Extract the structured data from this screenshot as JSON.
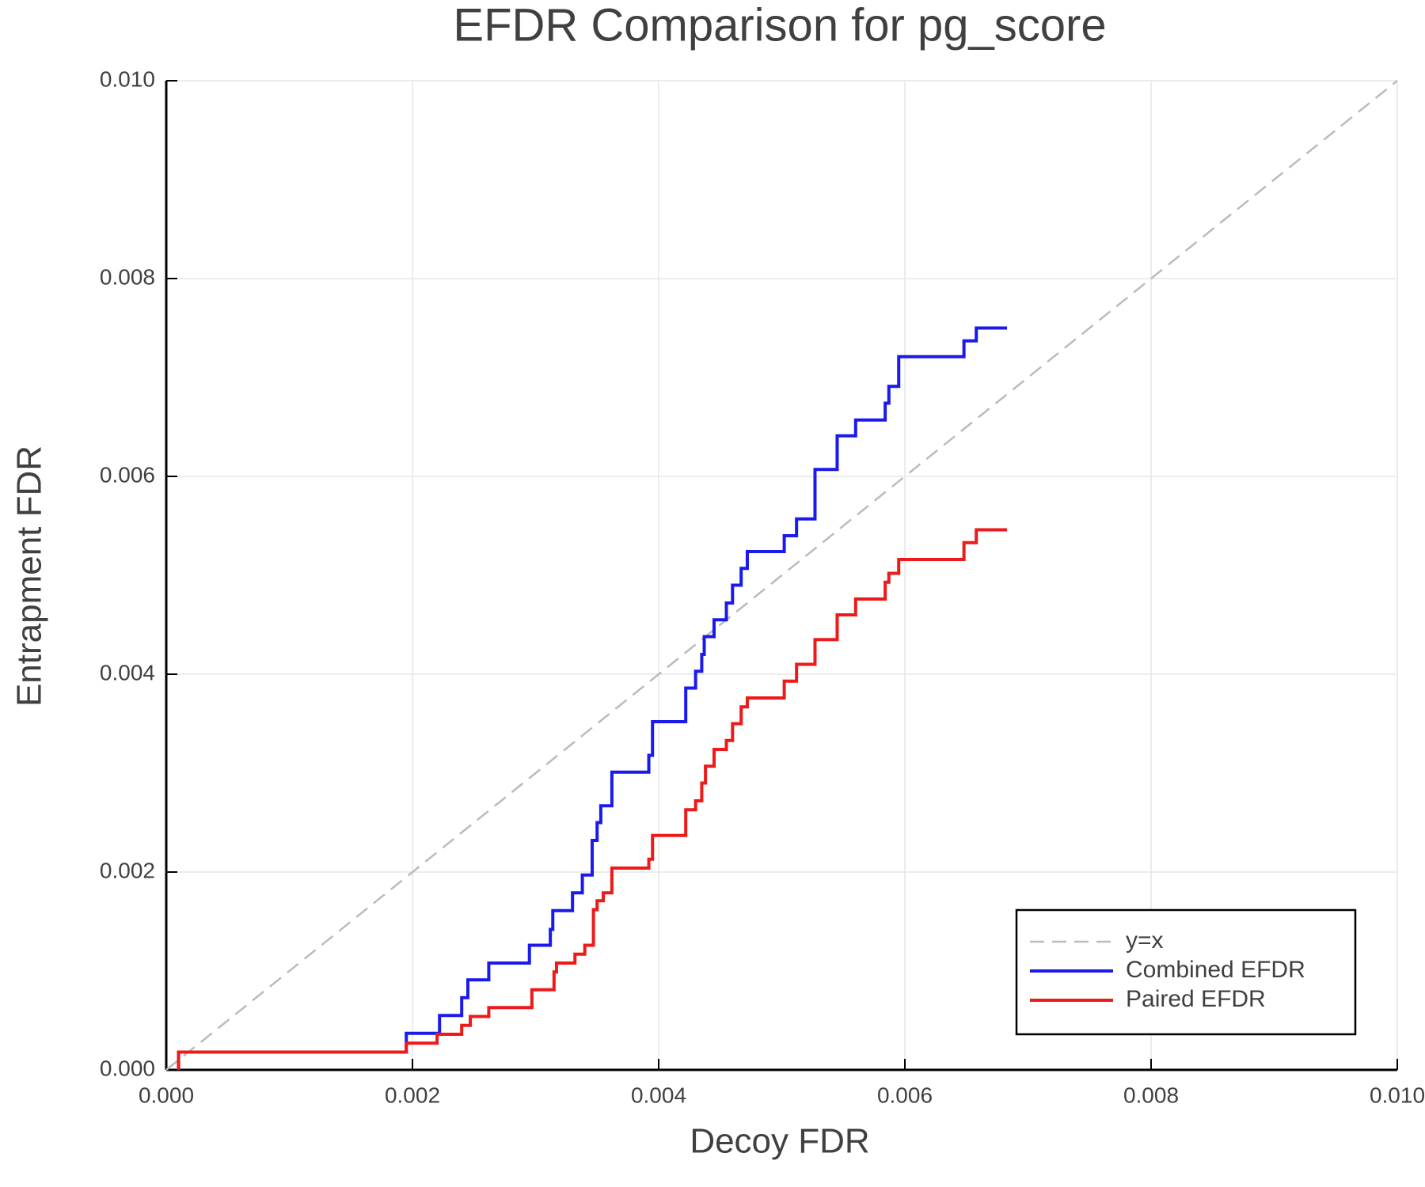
{
  "chart_data": {
    "type": "line",
    "title": "EFDR Comparison for pg_score",
    "x_label": "Decoy FDR",
    "y_label": "Entrapment FDR",
    "xlim": [
      0,
      0.01
    ],
    "ylim": [
      0,
      0.01
    ],
    "xticks": [
      {
        "value": 0,
        "label": "0.000"
      },
      {
        "value": 0.002,
        "label": "0.002"
      },
      {
        "value": 0.004,
        "label": "0.004"
      },
      {
        "value": 0.006,
        "label": "0.006"
      },
      {
        "value": 0.008,
        "label": "0.008"
      },
      {
        "value": 0.01,
        "label": "0.010"
      }
    ],
    "yticks": [
      {
        "value": 0,
        "label": "0.000"
      },
      {
        "value": 0.002,
        "label": "0.002"
      },
      {
        "value": 0.004,
        "label": "0.004"
      },
      {
        "value": 0.006,
        "label": "0.006"
      },
      {
        "value": 0.008,
        "label": "0.008"
      },
      {
        "value": 0.01,
        "label": "0.010"
      }
    ],
    "grid": true,
    "legend_position": "lower right",
    "series": [
      {
        "name": "y=x",
        "color": "#bbbbbb",
        "dashed": true,
        "x": [
          0,
          0.01
        ],
        "values": [
          0,
          0.01
        ]
      },
      {
        "name": "Combined EFDR",
        "color": "#1a1aee",
        "dashed": false,
        "x": [
          0.0001,
          0.0001,
          0.00195,
          0.00195,
          0.00222,
          0.00222,
          0.0024,
          0.0024,
          0.00245,
          0.00245,
          0.00262,
          0.00262,
          0.00295,
          0.00295,
          0.00312,
          0.00312,
          0.00314,
          0.00314,
          0.0033,
          0.0033,
          0.00338,
          0.00338,
          0.00346,
          0.00346,
          0.0035,
          0.0035,
          0.00353,
          0.00353,
          0.00362,
          0.00362,
          0.00392,
          0.00392,
          0.00395,
          0.00395,
          0.00422,
          0.00422,
          0.0043,
          0.0043,
          0.00435,
          0.00435,
          0.00437,
          0.00437,
          0.00445,
          0.00445,
          0.00455,
          0.00455,
          0.0046,
          0.0046,
          0.00467,
          0.00467,
          0.00472,
          0.00472,
          0.00502,
          0.00502,
          0.00512,
          0.00512,
          0.00527,
          0.00527,
          0.00545,
          0.00545,
          0.0056,
          0.0056,
          0.00584,
          0.00584,
          0.00587,
          0.00587,
          0.00595,
          0.00595,
          0.00648,
          0.00648,
          0.00658,
          0.00658,
          0.00683
        ],
        "values": [
          0,
          0.00018,
          0.00018,
          0.00037,
          0.00037,
          0.00055,
          0.00055,
          0.00073,
          0.00073,
          0.00091,
          0.00091,
          0.00108,
          0.00108,
          0.00126,
          0.00126,
          0.00142,
          0.00142,
          0.00161,
          0.00161,
          0.00179,
          0.00179,
          0.00197,
          0.00197,
          0.00232,
          0.00232,
          0.0025,
          0.0025,
          0.00267,
          0.00267,
          0.00301,
          0.00301,
          0.00318,
          0.00318,
          0.00352,
          0.00352,
          0.00386,
          0.00386,
          0.00403,
          0.00403,
          0.0042,
          0.0042,
          0.00438,
          0.00438,
          0.00455,
          0.00455,
          0.00472,
          0.00472,
          0.0049,
          0.0049,
          0.00507,
          0.00507,
          0.00524,
          0.00524,
          0.0054,
          0.0054,
          0.00557,
          0.00557,
          0.00607,
          0.00607,
          0.00641,
          0.00641,
          0.00657,
          0.00657,
          0.00674,
          0.00674,
          0.00691,
          0.00691,
          0.00721,
          0.00721,
          0.00737,
          0.00737,
          0.0075,
          0.0075
        ]
      },
      {
        "name": "Paired EFDR",
        "color": "#ee1a1a",
        "dashed": false,
        "x": [
          0.0001,
          0.0001,
          0.00195,
          0.00195,
          0.0022,
          0.0022,
          0.0024,
          0.0024,
          0.00247,
          0.00247,
          0.00262,
          0.00262,
          0.00297,
          0.00297,
          0.00315,
          0.00315,
          0.00317,
          0.00317,
          0.00332,
          0.00332,
          0.0034,
          0.0034,
          0.00347,
          0.00347,
          0.0035,
          0.0035,
          0.00355,
          0.00355,
          0.00362,
          0.00362,
          0.00392,
          0.00392,
          0.00395,
          0.00395,
          0.00422,
          0.00422,
          0.0043,
          0.0043,
          0.00435,
          0.00435,
          0.00438,
          0.00438,
          0.00445,
          0.00445,
          0.00455,
          0.00455,
          0.0046,
          0.0046,
          0.00467,
          0.00467,
          0.00472,
          0.00472,
          0.00502,
          0.00502,
          0.00512,
          0.00512,
          0.00527,
          0.00527,
          0.00545,
          0.00545,
          0.0056,
          0.0056,
          0.00584,
          0.00584,
          0.00587,
          0.00587,
          0.00595,
          0.00595,
          0.00648,
          0.00648,
          0.00658,
          0.00658,
          0.00683
        ],
        "values": [
          0,
          0.00018,
          0.00018,
          0.00027,
          0.00027,
          0.00036,
          0.00036,
          0.00045,
          0.00045,
          0.00054,
          0.00054,
          0.00063,
          0.00063,
          0.00081,
          0.00081,
          0.00099,
          0.00099,
          0.00108,
          0.00108,
          0.00117,
          0.00117,
          0.00126,
          0.00126,
          0.00162,
          0.00162,
          0.00171,
          0.00171,
          0.00179,
          0.00179,
          0.00204,
          0.00204,
          0.00213,
          0.00213,
          0.00237,
          0.00237,
          0.00263,
          0.00263,
          0.00272,
          0.00272,
          0.0029,
          0.0029,
          0.00307,
          0.00307,
          0.00324,
          0.00324,
          0.00333,
          0.00333,
          0.0035,
          0.0035,
          0.00367,
          0.00367,
          0.00376,
          0.00376,
          0.00393,
          0.00393,
          0.0041,
          0.0041,
          0.00435,
          0.00435,
          0.0046,
          0.0046,
          0.00476,
          0.00476,
          0.00493,
          0.00493,
          0.00502,
          0.00502,
          0.00516,
          0.00516,
          0.00533,
          0.00533,
          0.00546,
          0.00546
        ]
      }
    ]
  }
}
